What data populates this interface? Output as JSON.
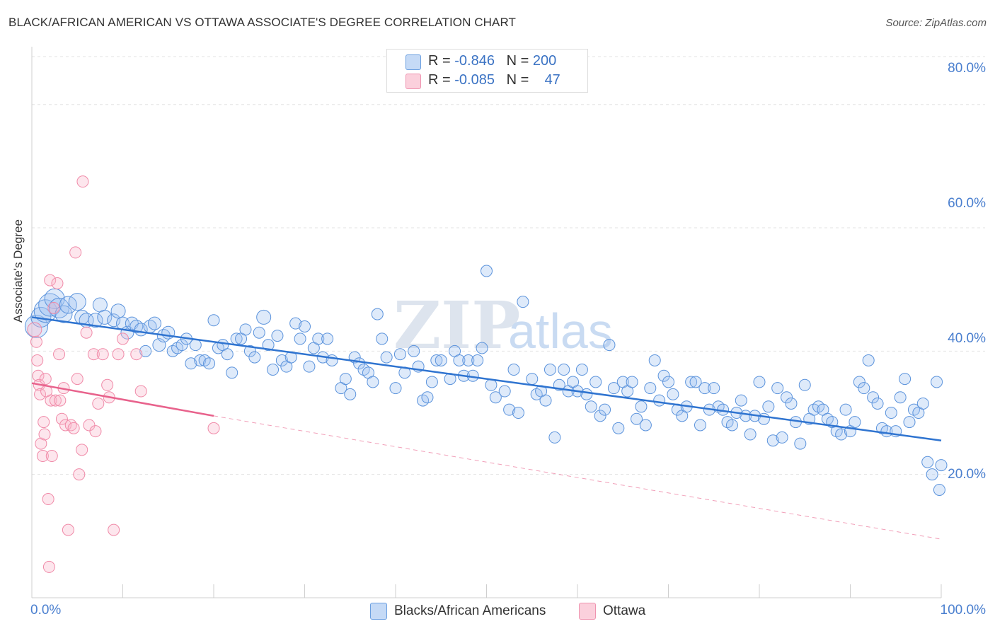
{
  "header": {
    "title": "BLACK/AFRICAN AMERICAN VS OTTAWA ASSOCIATE'S DEGREE CORRELATION CHART",
    "source": "Source: ZipAtlas.com"
  },
  "legend": {
    "row1": {
      "r_label": "R = ",
      "r_value": "-0.846",
      "n_label": "N = ",
      "n_value": "200"
    },
    "row2": {
      "r_label": "R = ",
      "r_value": "-0.085",
      "n_label": "N = ",
      "n_value": "47"
    }
  },
  "watermark": {
    "zip": "ZIP",
    "atlas": "atlas"
  },
  "colors": {
    "blue": "#5b93dc",
    "pink": "#f08aa8",
    "blue_line": "#2f74d0",
    "pink_line": "#e8628c"
  },
  "chart_data": {
    "type": "scatter",
    "xlabel": "",
    "ylabel": "Associate's Degree",
    "xlim": [
      0,
      100
    ],
    "ylim": [
      0,
      88
    ],
    "x_tick_labels": [
      "0.0%",
      "100.0%"
    ],
    "y_ticks": [
      20,
      40,
      60,
      80
    ],
    "y_tick_labels": [
      "20.0%",
      "40.0%",
      "60.0%",
      "80.0%"
    ],
    "grid": true,
    "legend_position": "top-center",
    "series": [
      {
        "name": "Blacks/African Americans",
        "color": "#5b93dc",
        "r": "-0.846",
        "n": "200",
        "trend": {
          "x": [
            0,
            100
          ],
          "y": [
            45.5,
            25.5
          ],
          "style": "solid"
        },
        "points": [
          [
            0.5,
            44,
            16
          ],
          [
            1,
            45.5,
            14
          ],
          [
            1.5,
            46.5,
            16
          ],
          [
            2,
            47.5,
            16
          ],
          [
            2.5,
            48.5,
            14
          ],
          [
            3,
            47,
            14
          ],
          [
            3.5,
            46,
            12
          ],
          [
            4,
            47.5,
            12
          ],
          [
            5,
            48,
            12
          ],
          [
            5.5,
            45.5,
            10
          ],
          [
            6,
            45,
            10
          ],
          [
            7,
            45,
            10
          ],
          [
            7.5,
            47.5,
            10
          ],
          [
            8,
            45.5,
            10
          ],
          [
            9,
            45,
            9
          ],
          [
            9.5,
            46.5,
            10
          ],
          [
            10,
            44.5,
            9
          ],
          [
            10.5,
            43,
            9
          ],
          [
            11,
            44.5,
            9
          ],
          [
            11.5,
            44,
            9
          ],
          [
            12,
            43.5,
            9
          ],
          [
            12.5,
            40,
            8
          ],
          [
            13,
            44,
            9
          ],
          [
            13.5,
            44.5,
            9
          ],
          [
            14,
            41,
            9
          ],
          [
            14.5,
            42.5,
            9
          ],
          [
            15,
            43,
            9
          ],
          [
            15.5,
            40,
            8
          ],
          [
            16,
            40.5,
            8
          ],
          [
            16.5,
            41,
            8
          ],
          [
            17,
            42,
            8
          ],
          [
            17.5,
            38,
            8
          ],
          [
            18,
            41,
            8
          ],
          [
            18.5,
            38.5,
            8
          ],
          [
            19,
            38.5,
            8
          ],
          [
            19.5,
            38,
            8
          ],
          [
            20,
            45,
            8
          ],
          [
            20.5,
            40.5,
            8
          ],
          [
            21,
            41,
            8
          ],
          [
            21.5,
            39.5,
            8
          ],
          [
            22,
            36.5,
            8
          ],
          [
            22.5,
            42,
            8
          ],
          [
            23,
            42,
            8
          ],
          [
            23.5,
            43.5,
            8
          ],
          [
            24,
            40,
            8
          ],
          [
            24.5,
            39,
            8
          ],
          [
            25,
            43,
            8
          ],
          [
            25.5,
            45.5,
            10
          ],
          [
            26,
            41,
            8
          ],
          [
            26.5,
            37,
            8
          ],
          [
            27,
            42.5,
            8
          ],
          [
            27.5,
            38.5,
            8
          ],
          [
            28,
            37.5,
            8
          ],
          [
            28.5,
            39,
            8
          ],
          [
            29,
            44.5,
            8
          ],
          [
            29.5,
            42,
            8
          ],
          [
            30,
            44,
            8
          ],
          [
            30.5,
            37.5,
            8
          ],
          [
            31,
            40.5,
            8
          ],
          [
            31.5,
            42,
            8
          ],
          [
            32,
            39,
            8
          ],
          [
            32.5,
            42,
            8
          ],
          [
            33,
            38.5,
            8
          ],
          [
            34,
            34,
            8
          ],
          [
            34.5,
            35.5,
            8
          ],
          [
            35,
            33,
            8
          ],
          [
            35.5,
            39,
            8
          ],
          [
            36,
            38,
            8
          ],
          [
            36.5,
            37,
            8
          ],
          [
            37,
            36.5,
            8
          ],
          [
            37.5,
            35,
            8
          ],
          [
            38,
            46,
            8
          ],
          [
            38.5,
            42,
            8
          ],
          [
            39,
            39,
            8
          ],
          [
            40,
            34,
            8
          ],
          [
            40.5,
            39.5,
            8
          ],
          [
            41,
            36.5,
            8
          ],
          [
            42,
            40,
            8
          ],
          [
            42.5,
            37.5,
            8
          ],
          [
            43,
            32,
            8
          ],
          [
            43.5,
            32.5,
            8
          ],
          [
            44,
            35,
            8
          ],
          [
            44.5,
            38.5,
            8
          ],
          [
            45,
            38.5,
            8
          ],
          [
            46,
            35.5,
            8
          ],
          [
            46.5,
            40,
            8
          ],
          [
            47,
            38.5,
            8
          ],
          [
            47.5,
            36,
            8
          ],
          [
            48,
            38.5,
            8
          ],
          [
            48.5,
            36,
            8
          ],
          [
            49,
            38.5,
            8
          ],
          [
            49.5,
            40.5,
            8
          ],
          [
            50,
            53,
            8
          ],
          [
            50.5,
            34.5,
            8
          ],
          [
            51,
            32.5,
            8
          ],
          [
            52,
            33.5,
            8
          ],
          [
            52.5,
            30.5,
            8
          ],
          [
            53,
            37,
            8
          ],
          [
            53.5,
            30,
            8
          ],
          [
            54,
            48,
            8
          ],
          [
            55,
            35.5,
            8
          ],
          [
            55.5,
            33,
            8
          ],
          [
            56,
            33.5,
            8
          ],
          [
            56.5,
            32,
            8
          ],
          [
            57,
            37,
            8
          ],
          [
            57.5,
            26,
            8
          ],
          [
            58,
            34.5,
            8
          ],
          [
            58.5,
            37,
            8
          ],
          [
            59,
            33.5,
            8
          ],
          [
            59.5,
            35,
            8
          ],
          [
            60,
            33.5,
            8
          ],
          [
            60.5,
            37,
            8
          ],
          [
            61,
            33,
            8
          ],
          [
            61.5,
            31,
            8
          ],
          [
            62,
            35,
            8
          ],
          [
            62.5,
            29.5,
            8
          ],
          [
            63,
            30.5,
            8
          ],
          [
            63.5,
            41,
            8
          ],
          [
            64,
            34,
            8
          ],
          [
            64.5,
            27.5,
            8
          ],
          [
            65,
            35,
            8
          ],
          [
            65.5,
            33.5,
            8
          ],
          [
            66,
            35,
            8
          ],
          [
            66.5,
            29,
            8
          ],
          [
            67,
            31,
            8
          ],
          [
            67.5,
            28,
            8
          ],
          [
            68,
            34,
            8
          ],
          [
            68.5,
            38.5,
            8
          ],
          [
            69,
            32,
            8
          ],
          [
            69.5,
            36,
            8
          ],
          [
            70,
            35,
            8
          ],
          [
            70.5,
            33,
            8
          ],
          [
            71,
            30.5,
            8
          ],
          [
            71.5,
            29.5,
            8
          ],
          [
            72,
            31,
            8
          ],
          [
            72.5,
            35,
            8
          ],
          [
            73,
            35,
            8
          ],
          [
            73.5,
            28,
            8
          ],
          [
            74,
            34,
            8
          ],
          [
            74.5,
            30.5,
            8
          ],
          [
            75,
            34,
            8
          ],
          [
            75.5,
            31,
            8
          ],
          [
            76,
            30.5,
            8
          ],
          [
            76.5,
            28.5,
            8
          ],
          [
            77,
            28,
            8
          ],
          [
            77.5,
            30,
            8
          ],
          [
            78,
            32,
            8
          ],
          [
            78.5,
            29.5,
            8
          ],
          [
            79,
            26.5,
            8
          ],
          [
            79.5,
            29.5,
            8
          ],
          [
            80,
            35,
            8
          ],
          [
            80.5,
            29,
            8
          ],
          [
            81,
            31,
            8
          ],
          [
            81.5,
            25.5,
            8
          ],
          [
            82,
            34,
            8
          ],
          [
            82.5,
            26,
            8
          ],
          [
            83,
            32.5,
            8
          ],
          [
            83.5,
            31.5,
            8
          ],
          [
            84,
            28.5,
            8
          ],
          [
            84.5,
            25,
            8
          ],
          [
            85,
            34.5,
            8
          ],
          [
            85.5,
            29,
            8
          ],
          [
            86,
            30.5,
            8
          ],
          [
            86.5,
            31,
            8
          ],
          [
            87,
            30.5,
            8
          ],
          [
            87.5,
            29,
            8
          ],
          [
            88,
            28.5,
            8
          ],
          [
            88.5,
            27,
            8
          ],
          [
            89,
            26.5,
            8
          ],
          [
            89.5,
            30.5,
            8
          ],
          [
            90,
            27,
            8
          ],
          [
            90.5,
            28.5,
            8
          ],
          [
            91,
            35,
            8
          ],
          [
            91.5,
            34,
            8
          ],
          [
            92,
            38.5,
            8
          ],
          [
            92.5,
            32.5,
            8
          ],
          [
            93,
            31.5,
            8
          ],
          [
            93.5,
            27.5,
            8
          ],
          [
            94,
            27,
            8
          ],
          [
            94.5,
            30,
            8
          ],
          [
            95,
            27,
            8
          ],
          [
            95.5,
            32.5,
            8
          ],
          [
            96,
            35.5,
            8
          ],
          [
            96.5,
            28.5,
            8
          ],
          [
            97,
            30.5,
            8
          ],
          [
            97.5,
            30,
            8
          ],
          [
            98,
            31.5,
            8
          ],
          [
            98.5,
            22,
            8
          ],
          [
            99,
            20,
            8
          ],
          [
            99.5,
            35,
            8
          ],
          [
            99.8,
            17.5,
            8
          ],
          [
            100,
            21.5,
            8
          ]
        ]
      },
      {
        "name": "Ottawa",
        "color": "#f08aa8",
        "r": "-0.085",
        "n": "47",
        "trend": {
          "x_solid": [
            0,
            20
          ],
          "y_solid": [
            34.8,
            29.5
          ],
          "x_dash": [
            20,
            100
          ],
          "y_dash": [
            29.5,
            9.5
          ]
        },
        "points": [
          [
            0.3,
            43.5,
            10
          ],
          [
            0.5,
            41.5,
            8
          ],
          [
            0.6,
            38.5,
            8
          ],
          [
            0.7,
            36,
            8
          ],
          [
            0.8,
            34.5,
            8
          ],
          [
            0.9,
            33,
            8
          ],
          [
            1,
            25,
            8
          ],
          [
            1.2,
            23,
            8
          ],
          [
            1.3,
            28.5,
            8
          ],
          [
            1.4,
            26.5,
            8
          ],
          [
            1.5,
            35.5,
            8
          ],
          [
            1.6,
            33.5,
            8
          ],
          [
            1.8,
            16,
            8
          ],
          [
            1.9,
            5,
            8
          ],
          [
            2,
            51.5,
            8
          ],
          [
            2.1,
            32,
            8
          ],
          [
            2.2,
            23,
            8
          ],
          [
            2.4,
            47,
            8
          ],
          [
            2.6,
            32,
            8
          ],
          [
            2.8,
            51,
            8
          ],
          [
            3,
            39.5,
            8
          ],
          [
            3.1,
            32,
            8
          ],
          [
            3.3,
            29,
            8
          ],
          [
            3.5,
            34,
            8
          ],
          [
            3.7,
            28,
            8
          ],
          [
            4,
            11,
            8
          ],
          [
            4.3,
            28,
            8
          ],
          [
            4.6,
            27.5,
            8
          ],
          [
            4.8,
            56,
            8
          ],
          [
            5,
            35.5,
            8
          ],
          [
            5.2,
            20,
            8
          ],
          [
            5.5,
            24,
            8
          ],
          [
            5.6,
            67.5,
            8
          ],
          [
            6,
            43,
            8
          ],
          [
            6.3,
            28,
            8
          ],
          [
            6.8,
            39.5,
            8
          ],
          [
            7,
            27,
            8
          ],
          [
            7.3,
            31.5,
            8
          ],
          [
            7.8,
            39.5,
            8
          ],
          [
            8.3,
            34.5,
            8
          ],
          [
            8.5,
            32.5,
            8
          ],
          [
            9,
            11,
            8
          ],
          [
            9.5,
            39.5,
            8
          ],
          [
            10,
            42,
            8
          ],
          [
            11.5,
            39.5,
            8
          ],
          [
            12,
            33.5,
            8
          ],
          [
            20,
            27.5,
            8
          ]
        ]
      }
    ]
  },
  "bottom_legend": {
    "item1": "Blacks/African Americans",
    "item2": "Ottawa"
  }
}
